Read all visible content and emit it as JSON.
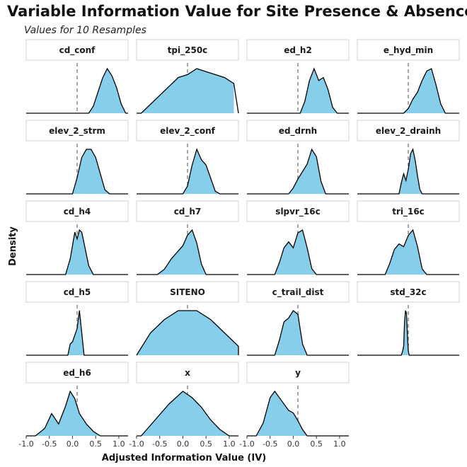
{
  "title": "Variable Information Value for Site Presence & Absence",
  "subtitle": "Values for 10 Resamples",
  "chart_data": {
    "type": "area",
    "subtype": "faceted density",
    "xlabel": "Adjusted Information Value (IV)",
    "ylabel": "Density",
    "fill_color": "#87ceeb",
    "reference_line": {
      "x": 0.1,
      "style": "dashed",
      "color": "#808080"
    },
    "xlim": [
      -1.0,
      1.2
    ],
    "x_tick_labels": [
      "-1.0",
      "-0.5",
      "0.0",
      "0.5",
      "1.0"
    ],
    "grid": false,
    "panels": [
      {
        "name": "cd_conf",
        "x": [
          0.35,
          0.45,
          0.55,
          0.65,
          0.75,
          0.85,
          0.95,
          1.05,
          1.15
        ],
        "y": [
          0.0,
          0.15,
          0.45,
          0.75,
          0.95,
          0.8,
          0.55,
          0.2,
          0.0
        ]
      },
      {
        "name": "tpi_250c",
        "x": [
          -0.9,
          -0.7,
          -0.5,
          -0.3,
          -0.1,
          0.1,
          0.3,
          0.5,
          0.7,
          0.9,
          1.1
        ],
        "y": [
          0.0,
          0.03,
          0.06,
          0.09,
          0.12,
          0.13,
          0.15,
          0.14,
          0.13,
          0.12,
          0.1
        ]
      },
      {
        "name": "ed_h2",
        "x": [
          0.15,
          0.25,
          0.35,
          0.45,
          0.55,
          0.65,
          0.75,
          0.85,
          0.95
        ],
        "y": [
          0.0,
          0.2,
          0.55,
          0.75,
          0.55,
          0.6,
          0.4,
          0.1,
          0.0
        ]
      },
      {
        "name": "e_hyd_min",
        "x": [
          0.0,
          0.1,
          0.2,
          0.3,
          0.4,
          0.5,
          0.6,
          0.7,
          0.8,
          0.9
        ],
        "y": [
          0.0,
          0.1,
          0.3,
          0.45,
          0.7,
          0.9,
          0.95,
          0.6,
          0.2,
          0.0
        ]
      },
      {
        "name": "elev_2_strm",
        "x": [
          0.0,
          0.1,
          0.2,
          0.3,
          0.4,
          0.5,
          0.6,
          0.7,
          0.8
        ],
        "y": [
          0.0,
          0.2,
          0.45,
          0.55,
          0.55,
          0.45,
          0.25,
          0.05,
          0.0
        ]
      },
      {
        "name": "elev_2_conf",
        "x": [
          0.0,
          0.1,
          0.2,
          0.3,
          0.4,
          0.5,
          0.6,
          0.7,
          0.8
        ],
        "y": [
          0.0,
          0.15,
          0.55,
          0.85,
          0.65,
          0.55,
          0.3,
          0.05,
          0.0
        ]
      },
      {
        "name": "ed_drnh",
        "x": [
          -0.1,
          0.0,
          0.1,
          0.2,
          0.3,
          0.4,
          0.5,
          0.6,
          0.7
        ],
        "y": [
          0.0,
          0.12,
          0.3,
          0.45,
          0.6,
          0.9,
          0.75,
          0.25,
          0.0
        ]
      },
      {
        "name": "elev_2_drainh",
        "x": [
          -0.1,
          -0.05,
          0.0,
          0.05,
          0.1,
          0.15,
          0.2,
          0.25,
          0.3,
          0.35,
          0.4
        ],
        "y": [
          0.0,
          0.25,
          0.45,
          0.3,
          0.55,
          0.9,
          1.0,
          0.75,
          0.4,
          0.1,
          0.0
        ]
      },
      {
        "name": "cd_h4",
        "x": [
          -0.15,
          -0.05,
          0.05,
          0.1,
          0.15,
          0.2,
          0.25,
          0.35,
          0.45
        ],
        "y": [
          0.0,
          0.35,
          0.95,
          0.8,
          1.0,
          0.95,
          0.7,
          0.2,
          0.0
        ]
      },
      {
        "name": "cd_h7",
        "x": [
          -0.55,
          -0.4,
          -0.25,
          -0.1,
          0.0,
          0.1,
          0.2,
          0.3,
          0.4,
          0.5
        ],
        "y": [
          0.0,
          0.1,
          0.3,
          0.45,
          0.55,
          0.75,
          0.85,
          0.6,
          0.2,
          0.0
        ]
      },
      {
        "name": "slpvr_16c",
        "x": [
          -0.4,
          -0.3,
          -0.2,
          -0.1,
          0.0,
          0.1,
          0.2,
          0.3,
          0.4,
          0.5
        ],
        "y": [
          0.0,
          0.2,
          0.45,
          0.55,
          0.45,
          0.7,
          0.75,
          0.45,
          0.1,
          0.0
        ]
      },
      {
        "name": "tri_16c",
        "x": [
          -0.4,
          -0.3,
          -0.2,
          -0.1,
          0.0,
          0.1,
          0.2,
          0.3,
          0.4,
          0.5
        ],
        "y": [
          0.0,
          0.2,
          0.45,
          0.55,
          0.5,
          0.7,
          0.8,
          0.5,
          0.1,
          0.0
        ]
      },
      {
        "name": "cd_h5",
        "x": [
          -0.1,
          -0.05,
          0.0,
          0.05,
          0.1,
          0.15,
          0.2,
          0.25
        ],
        "y": [
          0.0,
          0.25,
          0.3,
          0.45,
          0.6,
          1.0,
          0.5,
          0.0
        ]
      },
      {
        "name": "SITENO",
        "x": [
          -1.0,
          -0.7,
          -0.4,
          -0.1,
          0.1,
          0.3,
          0.6,
          0.9,
          1.2
        ],
        "y": [
          0.0,
          0.05,
          0.08,
          0.1,
          0.1,
          0.1,
          0.08,
          0.05,
          0.02
        ]
      },
      {
        "name": "c_trail_dist",
        "x": [
          -0.4,
          -0.3,
          -0.2,
          -0.1,
          0.0,
          0.1,
          0.2,
          0.3
        ],
        "y": [
          0.0,
          0.2,
          0.45,
          0.5,
          0.6,
          0.55,
          0.15,
          0.0
        ]
      },
      {
        "name": "std_32c",
        "x": [
          -0.05,
          -0.02,
          0.0,
          0.02,
          0.04,
          0.06,
          0.08,
          0.1,
          0.12
        ],
        "y": [
          0.0,
          0.1,
          0.2,
          0.75,
          1.0,
          0.95,
          0.5,
          0.1,
          0.0
        ]
      },
      {
        "name": "ed_h6",
        "x": [
          -0.8,
          -0.6,
          -0.45,
          -0.3,
          -0.15,
          -0.05,
          0.05,
          0.15,
          0.3,
          0.45,
          0.6
        ],
        "y": [
          0.0,
          0.05,
          0.15,
          0.08,
          0.2,
          0.3,
          0.25,
          0.15,
          0.08,
          0.03,
          0.0
        ]
      },
      {
        "name": "x",
        "x": [
          -0.9,
          -0.6,
          -0.3,
          0.0,
          0.2,
          0.4,
          0.6,
          0.8,
          1.0,
          1.1
        ],
        "y": [
          0.0,
          0.05,
          0.1,
          0.14,
          0.12,
          0.09,
          0.05,
          0.02,
          0.0,
          0.0
        ]
      },
      {
        "name": "y",
        "x": [
          -0.8,
          -0.65,
          -0.5,
          -0.4,
          -0.3,
          -0.1,
          0.0,
          0.1,
          0.2,
          0.3
        ],
        "y": [
          0.0,
          0.1,
          0.3,
          0.35,
          0.3,
          0.2,
          0.18,
          0.12,
          0.05,
          0.0
        ]
      }
    ]
  }
}
